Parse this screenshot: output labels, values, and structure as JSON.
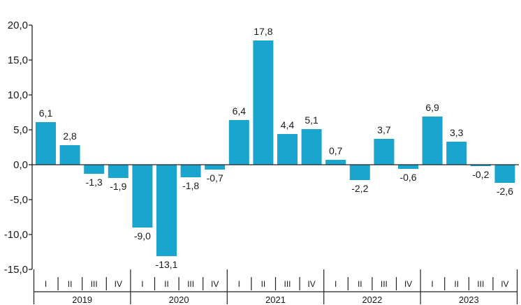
{
  "chart_data": {
    "type": "bar",
    "title": "",
    "xlabel": "",
    "ylabel": "",
    "ylim": [
      -15,
      20
    ],
    "yticks": [
      20,
      15,
      10,
      5,
      0,
      -5,
      -10,
      -15
    ],
    "ytick_labels": [
      "20,0",
      "15,0",
      "10,0",
      "5,0",
      "0,0",
      "-5,0",
      "-10,0",
      "-15,0"
    ],
    "grid": false,
    "legend": "none",
    "bar_color": "#1aa5cf",
    "years": [
      "2019",
      "2020",
      "2021",
      "2022",
      "2023"
    ],
    "quarters": [
      "I",
      "II",
      "III",
      "IV"
    ],
    "categories": [
      "2019 I",
      "2019 II",
      "2019 III",
      "2019 IV",
      "2020 I",
      "2020 II",
      "2020 III",
      "2020 IV",
      "2021 I",
      "2021 II",
      "2021 III",
      "2021 IV",
      "2022 I",
      "2022 II",
      "2022 III",
      "2022 IV",
      "2023 I",
      "2023 II",
      "2023 III",
      "2023 IV"
    ],
    "values": [
      6.1,
      2.8,
      -1.3,
      -1.9,
      -9.0,
      -13.1,
      -1.8,
      -0.7,
      6.4,
      17.8,
      4.4,
      5.1,
      0.7,
      -2.2,
      3.7,
      -0.6,
      6.9,
      3.3,
      -0.2,
      -2.6
    ],
    "value_labels": [
      "6,1",
      "2,8",
      "-1,3",
      "-1,9",
      "-9,0",
      "-13,1",
      "-1,8",
      "-0,7",
      "6,4",
      "17,8",
      "4,4",
      "5,1",
      "0,7",
      "-2,2",
      "3,7",
      "-0,6",
      "6,9",
      "3,3",
      "-0,2",
      "-2,6"
    ]
  }
}
